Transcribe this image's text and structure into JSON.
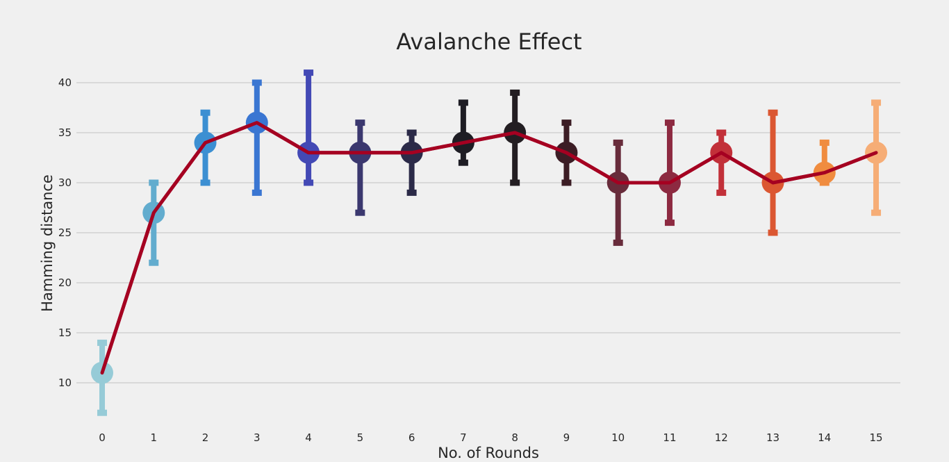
{
  "chart_data": {
    "type": "line",
    "title": "Avalanche Effect",
    "xlabel": "No. of Rounds",
    "ylabel": "Hamming distance",
    "categories": [
      "0",
      "1",
      "2",
      "3",
      "4",
      "5",
      "6",
      "7",
      "8",
      "9",
      "10",
      "11",
      "12",
      "13",
      "14",
      "15"
    ],
    "yticks": [
      "10",
      "15",
      "20",
      "25",
      "30",
      "35",
      "40"
    ],
    "ylim": [
      6,
      42
    ],
    "grid": true,
    "series": [
      {
        "name": "Hamming distance",
        "line_color": "#a50021",
        "values": [
          11,
          27,
          34,
          36,
          33,
          33,
          33,
          34,
          35,
          33,
          30,
          30,
          33,
          30,
          31,
          33
        ],
        "err_low": [
          7,
          22,
          30,
          29,
          30,
          27,
          29,
          32,
          30,
          30,
          24,
          26,
          29,
          25,
          30,
          27
        ],
        "err_high": [
          14,
          30,
          37,
          40,
          41,
          36,
          35,
          38,
          39,
          36,
          34,
          36,
          35,
          37,
          34,
          38
        ],
        "point_colors": [
          "#96cbd7",
          "#62acce",
          "#3c8fd2",
          "#3a76d2",
          "#4349b5",
          "#3b386f",
          "#2b2a48",
          "#1e1d24",
          "#231e22",
          "#3c1d25",
          "#682c3b",
          "#8d2a41",
          "#c23039",
          "#db5732",
          "#f08c3f",
          "#f6ad76"
        ]
      }
    ]
  }
}
